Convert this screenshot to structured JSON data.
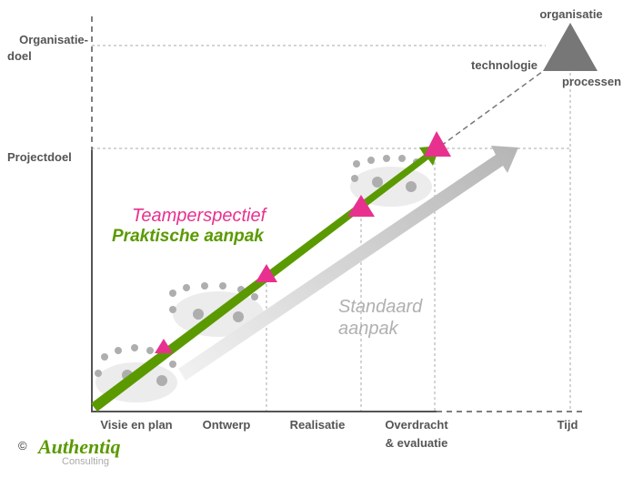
{
  "y_axis": {
    "organisatiedoel": [
      "Organisatie-",
      "doel"
    ],
    "projectdoel": "Projectdoel"
  },
  "goal": {
    "top": "organisatie",
    "left": "technologie",
    "right": "processen"
  },
  "arrows": {
    "team": "Teamperspectief",
    "practical": "Praktische aanpak",
    "standard": [
      "Standaard",
      "aanpak"
    ]
  },
  "x_axis": {
    "phases": [
      [
        "Visie en plan"
      ],
      [
        "Ontwerp"
      ],
      [
        "Realisatie"
      ],
      [
        "Overdracht",
        "& evaluatie"
      ]
    ],
    "end": "Tijd"
  },
  "footer": {
    "copyright": "©",
    "brand": "Authentiq",
    "sub": "Consulting"
  }
}
